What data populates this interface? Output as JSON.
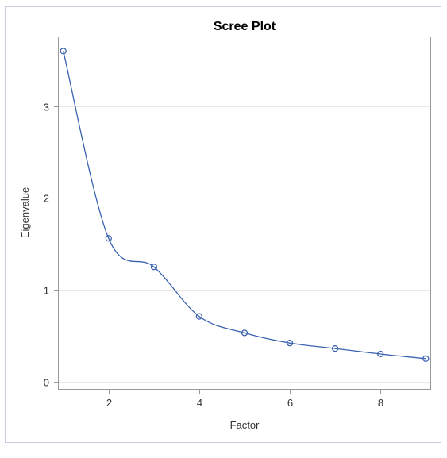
{
  "chart_data": {
    "type": "line",
    "title": "Scree Plot",
    "xlabel": "Factor",
    "ylabel": "Eigenvalue",
    "x": [
      1,
      2,
      3,
      4,
      5,
      6,
      7,
      8,
      9
    ],
    "series": [
      {
        "name": "Eigenvalue",
        "values": [
          3.6,
          1.56,
          1.25,
          0.71,
          0.53,
          0.42,
          0.36,
          0.3,
          0.25
        ]
      }
    ],
    "xlim": [
      0.9,
      9.1
    ],
    "ylim": [
      -0.08,
      3.75
    ],
    "xticks": [
      2,
      4,
      6,
      8
    ],
    "yticks": [
      0,
      1,
      2,
      3
    ],
    "grid": "horizontal",
    "legend": "none",
    "colors": {
      "line": "#3a62b0",
      "marker": "#3a62b0",
      "grid": "#e8e8e8",
      "axis": "#999999",
      "outer_border": "#c8cce0"
    }
  }
}
